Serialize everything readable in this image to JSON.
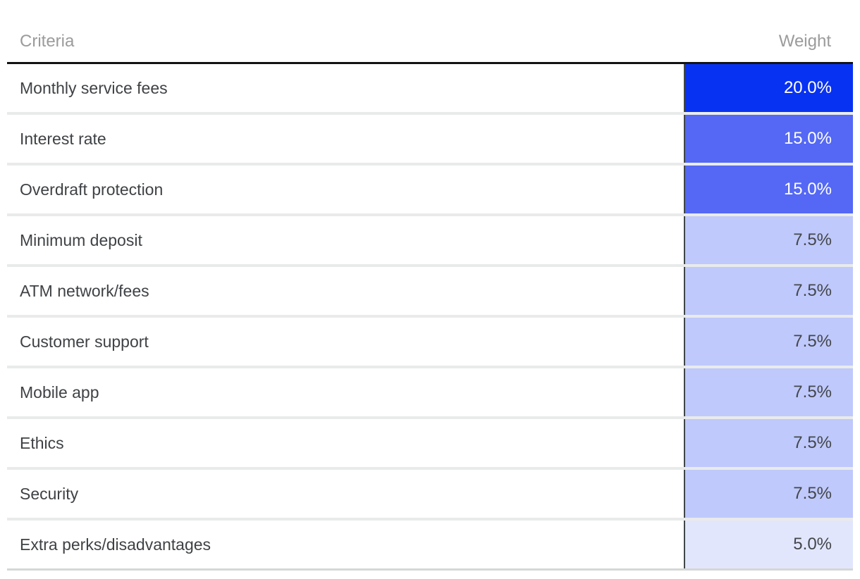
{
  "table": {
    "columns": [
      {
        "label": "Criteria"
      },
      {
        "label": "Weight"
      }
    ],
    "rows": [
      {
        "criteria": "Monthly service fees",
        "weight": "20.0%",
        "fill": "#0832f2",
        "text_color": "#ffffff"
      },
      {
        "criteria": "Interest rate",
        "weight": "15.0%",
        "fill": "#5468f5",
        "text_color": "#ffffff"
      },
      {
        "criteria": "Overdraft protection",
        "weight": "15.0%",
        "fill": "#5468f5",
        "text_color": "#ffffff"
      },
      {
        "criteria": "Minimum deposit",
        "weight": "7.5%",
        "fill": "#bfc9fb",
        "text_color": "#43464b"
      },
      {
        "criteria": "ATM network/fees",
        "weight": "7.5%",
        "fill": "#bfc9fb",
        "text_color": "#43464b"
      },
      {
        "criteria": "Customer support",
        "weight": "7.5%",
        "fill": "#bfc9fb",
        "text_color": "#43464b"
      },
      {
        "criteria": "Mobile app",
        "weight": "7.5%",
        "fill": "#bfc9fb",
        "text_color": "#43464b"
      },
      {
        "criteria": "Ethics",
        "weight": "7.5%",
        "fill": "#bfc9fb",
        "text_color": "#43464b"
      },
      {
        "criteria": "Security",
        "weight": "7.5%",
        "fill": "#bfc9fb",
        "text_color": "#43464b"
      },
      {
        "criteria": "Extra perks/disadvantages",
        "weight": "5.0%",
        "fill": "#e2e6fc",
        "text_color": "#43464b"
      }
    ]
  },
  "colors": {
    "header_text": "#9b9b9b",
    "body_text": "#3f4245",
    "header_border": "#131313",
    "row_separator": "#e9ebeb",
    "bottom_border": "#d5d7d7",
    "column_divider": "#40474a"
  }
}
